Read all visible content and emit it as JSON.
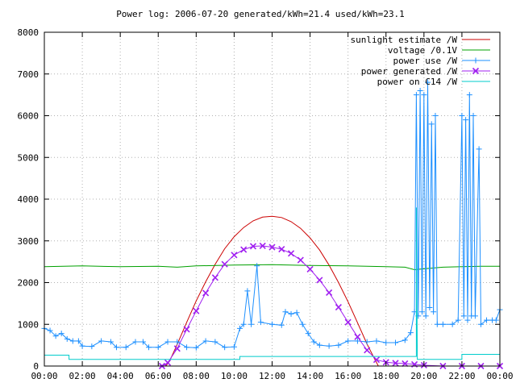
{
  "chart_data": {
    "type": "line",
    "title": "Power log: 2006-07-20 generated/kWh=21.4 used/kWh=23.1",
    "xlabel": "",
    "ylabel": "",
    "xlim": [
      0,
      24
    ],
    "ylim": [
      0,
      8000
    ],
    "x_ticks": [
      "00:00",
      "02:00",
      "04:00",
      "06:00",
      "08:00",
      "10:00",
      "12:00",
      "14:00",
      "16:00",
      "18:00",
      "20:00",
      "22:00",
      "00:00"
    ],
    "y_ticks": [
      "0",
      "1000",
      "2000",
      "3000",
      "4000",
      "5000",
      "6000",
      "7000",
      "8000"
    ],
    "grid": true,
    "legend_position": "top-right",
    "series": [
      {
        "name": "sunlight estimate /W",
        "color": "#cc0000",
        "marker": "none",
        "points": [
          [
            6.4,
            0
          ],
          [
            6.6,
            120
          ],
          [
            7,
            520
          ],
          [
            7.5,
            1050
          ],
          [
            8,
            1560
          ],
          [
            8.5,
            2020
          ],
          [
            9,
            2440
          ],
          [
            9.5,
            2810
          ],
          [
            10,
            3100
          ],
          [
            10.5,
            3320
          ],
          [
            11,
            3480
          ],
          [
            11.5,
            3570
          ],
          [
            12,
            3590
          ],
          [
            12.5,
            3560
          ],
          [
            13,
            3460
          ],
          [
            13.5,
            3300
          ],
          [
            14,
            3070
          ],
          [
            14.5,
            2780
          ],
          [
            15,
            2420
          ],
          [
            15.5,
            2000
          ],
          [
            16,
            1540
          ],
          [
            16.5,
            1040
          ],
          [
            17,
            530
          ],
          [
            17.4,
            170
          ],
          [
            17.6,
            0
          ]
        ]
      },
      {
        "name": "voltage /0.1V",
        "color": "#00a000",
        "marker": "none",
        "points": [
          [
            0,
            2380
          ],
          [
            2,
            2400
          ],
          [
            4,
            2380
          ],
          [
            6,
            2390
          ],
          [
            7,
            2370
          ],
          [
            8,
            2400
          ],
          [
            10,
            2420
          ],
          [
            12,
            2430
          ],
          [
            14,
            2410
          ],
          [
            16,
            2400
          ],
          [
            18,
            2380
          ],
          [
            19,
            2370
          ],
          [
            19.5,
            2310
          ],
          [
            20,
            2330
          ],
          [
            21,
            2370
          ],
          [
            22,
            2380
          ],
          [
            23,
            2390
          ],
          [
            24,
            2390
          ]
        ]
      },
      {
        "name": "power use /W",
        "color": "#1e90ff",
        "marker": "+",
        "points": [
          [
            0,
            900
          ],
          [
            0.3,
            850
          ],
          [
            0.6,
            720
          ],
          [
            0.9,
            780
          ],
          [
            1.2,
            650
          ],
          [
            1.5,
            600
          ],
          [
            1.8,
            600
          ],
          [
            2,
            480
          ],
          [
            2.5,
            470
          ],
          [
            3,
            600
          ],
          [
            3.5,
            580
          ],
          [
            3.8,
            450
          ],
          [
            4.3,
            450
          ],
          [
            4.8,
            580
          ],
          [
            5.2,
            580
          ],
          [
            5.5,
            450
          ],
          [
            6,
            450
          ],
          [
            6.5,
            580
          ],
          [
            7,
            580
          ],
          [
            7.5,
            450
          ],
          [
            8,
            440
          ],
          [
            8.5,
            600
          ],
          [
            9,
            580
          ],
          [
            9.5,
            450
          ],
          [
            10,
            460
          ],
          [
            10.3,
            900
          ],
          [
            10.5,
            1000
          ],
          [
            10.7,
            1800
          ],
          [
            10.9,
            1000
          ],
          [
            11.2,
            2400
          ],
          [
            11.4,
            1050
          ],
          [
            12,
            1000
          ],
          [
            12.5,
            980
          ],
          [
            12.7,
            1300
          ],
          [
            13,
            1250
          ],
          [
            13.3,
            1280
          ],
          [
            13.6,
            1000
          ],
          [
            13.9,
            780
          ],
          [
            14.2,
            580
          ],
          [
            14.5,
            500
          ],
          [
            15,
            480
          ],
          [
            15.5,
            500
          ],
          [
            16,
            600
          ],
          [
            16.5,
            600
          ],
          [
            17,
            580
          ],
          [
            17.5,
            600
          ],
          [
            18,
            560
          ],
          [
            18.5,
            560
          ],
          [
            19,
            620
          ],
          [
            19.3,
            800
          ],
          [
            19.5,
            1300
          ],
          [
            19.6,
            6500
          ],
          [
            19.7,
            1200
          ],
          [
            19.8,
            6600
          ],
          [
            19.9,
            1300
          ],
          [
            20,
            6500
          ],
          [
            20.1,
            1200
          ],
          [
            20.2,
            6800
          ],
          [
            20.3,
            1400
          ],
          [
            20.4,
            5800
          ],
          [
            20.5,
            1300
          ],
          [
            20.6,
            6000
          ],
          [
            20.7,
            1000
          ],
          [
            21,
            1000
          ],
          [
            21.5,
            1000
          ],
          [
            21.8,
            1100
          ],
          [
            22,
            6000
          ],
          [
            22.1,
            1200
          ],
          [
            22.2,
            5900
          ],
          [
            22.3,
            1100
          ],
          [
            22.4,
            6500
          ],
          [
            22.5,
            1200
          ],
          [
            22.6,
            6000
          ],
          [
            22.7,
            1200
          ],
          [
            22.9,
            5200
          ],
          [
            23,
            1000
          ],
          [
            23.3,
            1100
          ],
          [
            23.6,
            1100
          ],
          [
            23.8,
            1100
          ],
          [
            24,
            1350
          ]
        ]
      },
      {
        "name": "power generated /W",
        "color": "#a020f0",
        "marker": "x",
        "points": [
          [
            6.2,
            0
          ],
          [
            6.5,
            80
          ],
          [
            7,
            420
          ],
          [
            7.5,
            880
          ],
          [
            8,
            1320
          ],
          [
            8.5,
            1750
          ],
          [
            9,
            2120
          ],
          [
            9.5,
            2440
          ],
          [
            10,
            2660
          ],
          [
            10.5,
            2790
          ],
          [
            11,
            2870
          ],
          [
            11.5,
            2880
          ],
          [
            12,
            2850
          ],
          [
            12.5,
            2800
          ],
          [
            13,
            2700
          ],
          [
            13.5,
            2540
          ],
          [
            14,
            2320
          ],
          [
            14.5,
            2060
          ],
          [
            15,
            1760
          ],
          [
            15.5,
            1410
          ],
          [
            16,
            1050
          ],
          [
            16.5,
            700
          ],
          [
            17,
            380
          ],
          [
            17.5,
            150
          ],
          [
            18,
            90
          ],
          [
            18.5,
            70
          ],
          [
            19,
            60
          ],
          [
            19.5,
            40
          ],
          [
            20,
            20
          ],
          [
            21,
            0
          ],
          [
            22,
            0
          ],
          [
            23,
            0
          ],
          [
            24,
            0
          ]
        ]
      },
      {
        "name": "power on C14 /W",
        "color": "#00cccc",
        "marker": "none",
        "points": [
          [
            0,
            260
          ],
          [
            1.3,
            260
          ],
          [
            1.3,
            160
          ],
          [
            10.3,
            160
          ],
          [
            10.3,
            230
          ],
          [
            19.6,
            230
          ],
          [
            19.6,
            3800
          ],
          [
            19.65,
            160
          ],
          [
            22,
            160
          ],
          [
            22,
            280
          ],
          [
            24,
            280
          ]
        ]
      }
    ]
  }
}
